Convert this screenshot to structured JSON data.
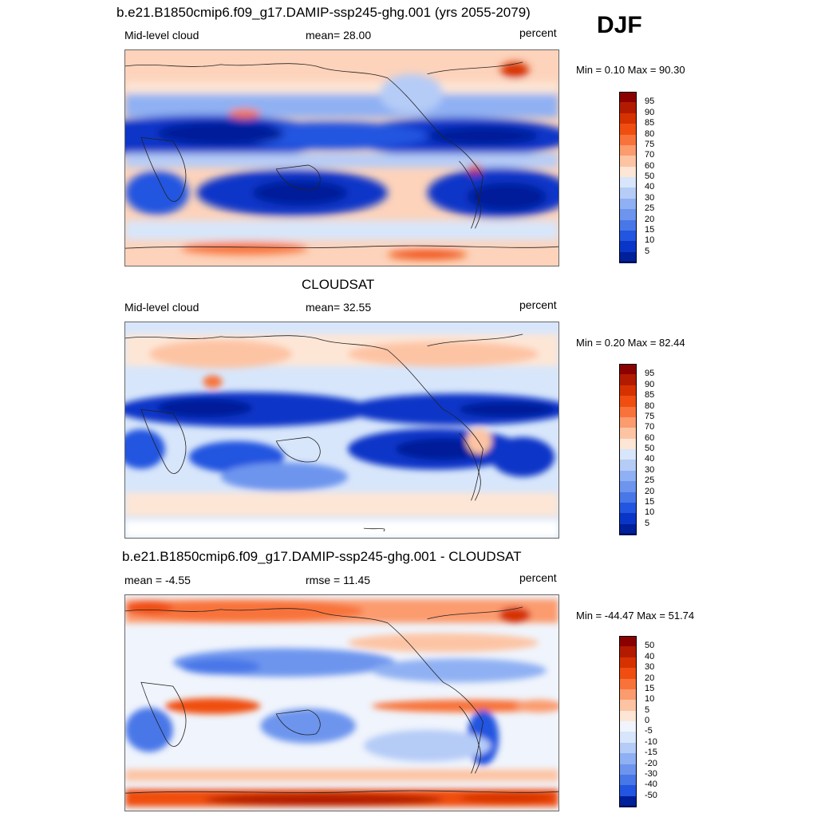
{
  "season": "DJF",
  "panels": [
    {
      "title": "b.e21.B1850cmip6.f09_g17.DAMIP-ssp245-ghg.001 (yrs 2055-2079)",
      "left_label": "Mid-level cloud",
      "center_label": "mean=  28.00",
      "right_label": "percent",
      "minmax": "Min =   0.10 Max =  90.30"
    },
    {
      "title": "CLOUDSAT",
      "left_label": "Mid-level cloud",
      "center_label": "mean=  32.55",
      "right_label": "percent",
      "minmax": "Min =   0.20 Max =  82.44"
    },
    {
      "title": "b.e21.B1850cmip6.f09_g17.DAMIP-ssp245-ghg.001 - CLOUDSAT",
      "left_label": "mean =  -4.55",
      "center_label": "rmse =  11.45",
      "right_label": "percent",
      "minmax": "Min = -44.47 Max =  51.74"
    }
  ],
  "colorbars": {
    "field": {
      "labels": [
        "95",
        "90",
        "85",
        "80",
        "75",
        "70",
        "60",
        "50",
        "40",
        "30",
        "25",
        "20",
        "15",
        "10",
        "5"
      ],
      "colors": [
        "#8b0000",
        "#b31b00",
        "#d63200",
        "#f04e10",
        "#f8733a",
        "#fb9b6e",
        "#fdc4a4",
        "#fde6d6",
        "#d8e6fb",
        "#b5ccf7",
        "#8fb0f3",
        "#6d95ee",
        "#4877e8",
        "#2255e0",
        "#0a36c8",
        "#001f9a"
      ]
    },
    "diff": {
      "labels": [
        "50",
        "40",
        "30",
        "20",
        "15",
        "10",
        "5",
        "0",
        "-5",
        "-10",
        "-15",
        "-20",
        "-30",
        "-40",
        "-50"
      ],
      "colors": [
        "#8b0000",
        "#b31b00",
        "#d63200",
        "#f04e10",
        "#f8733a",
        "#fb9b6e",
        "#fdc4a4",
        "#fde6d6",
        "#f0f4fc",
        "#d8e6fb",
        "#b5ccf7",
        "#8fb0f3",
        "#6d95ee",
        "#4877e8",
        "#2255e0",
        "#001f9a"
      ]
    }
  }
}
